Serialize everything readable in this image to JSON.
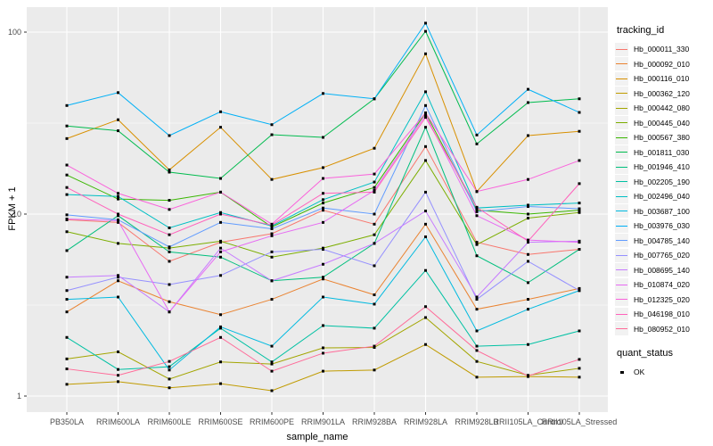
{
  "figure": {
    "background": "#FFFFFF",
    "panel_background": "#EBEBEB",
    "gridline_color": "#FFFFFF",
    "tick_mark_color": "#333333",
    "tick_label_color": "#4D4D4D",
    "axis_title_color": "#000000",
    "point_color": "#000000"
  },
  "legend": {
    "tracking_title": "tracking_id",
    "quant_title": "quant_status",
    "quant_ok_label": "OK"
  },
  "chart_data": {
    "type": "line",
    "title": "",
    "xlabel": "sample_name",
    "ylabel": "FPKM + 1",
    "y_scale": "log10",
    "y_ticks": [
      1,
      10,
      100
    ],
    "y_minor_ticks": [
      3.162,
      31.62
    ],
    "ylim": [
      0.82,
      137
    ],
    "grid": true,
    "legend_position": "right",
    "point_shape": "filled-square",
    "categories": [
      "PB350LA",
      "RRIM600LA",
      "RRIM600LE",
      "RRIM600SE",
      "RRIM600PE",
      "RRIM901LA",
      "RRIM928BA",
      "RRIM928LA",
      "RRIM928LB",
      "RRII105LA_Control",
      "RRII105LA_Stressed"
    ],
    "series": [
      {
        "name": "Hb_000011_330",
        "color": "#F8766D",
        "values": [
          9.3,
          9.0,
          5.5,
          7.0,
          7.8,
          10.5,
          8.8,
          23.5,
          7.0,
          6.0,
          6.4
        ]
      },
      {
        "name": "Hb_000092_010",
        "color": "#EA8331",
        "values": [
          2.9,
          4.3,
          3.3,
          2.8,
          3.4,
          4.4,
          3.6,
          8.8,
          3.0,
          3.4,
          3.9
        ]
      },
      {
        "name": "Hb_000116_010",
        "color": "#D89000",
        "values": [
          26,
          33,
          17.5,
          30,
          15.5,
          18,
          23,
          76,
          13.3,
          27,
          28.5
        ]
      },
      {
        "name": "Hb_000362_120",
        "color": "#C09B00",
        "values": [
          1.16,
          1.2,
          1.11,
          1.17,
          1.07,
          1.37,
          1.39,
          1.92,
          1.27,
          1.28,
          1.27
        ]
      },
      {
        "name": "Hb_000442_080",
        "color": "#A3A500",
        "values": [
          1.6,
          1.75,
          1.24,
          1.54,
          1.5,
          1.84,
          1.85,
          2.7,
          1.55,
          1.3,
          1.42
        ]
      },
      {
        "name": "Hb_000445_040",
        "color": "#7CAE00",
        "values": [
          8.0,
          6.9,
          6.5,
          7.1,
          5.8,
          6.5,
          7.7,
          19.7,
          6.8,
          9.5,
          10.2
        ]
      },
      {
        "name": "Hb_000567_380",
        "color": "#39B600",
        "values": [
          16.4,
          12.1,
          11.9,
          13.2,
          8.5,
          11.5,
          14.0,
          36,
          10.5,
          10.0,
          10.5
        ]
      },
      {
        "name": "Hb_001811_030",
        "color": "#00BB4E",
        "values": [
          30.5,
          28.7,
          17.0,
          15.7,
          27.3,
          26.4,
          43,
          101,
          24.3,
          41,
          43
        ]
      },
      {
        "name": "Hb_001946_410",
        "color": "#00BF7D",
        "values": [
          6.3,
          9.8,
          6.2,
          5.8,
          4.3,
          4.5,
          6.9,
          30,
          5.9,
          4.2,
          6.4
        ]
      },
      {
        "name": "Hb_002205_190",
        "color": "#00C1A3",
        "values": [
          2.1,
          1.4,
          1.45,
          2.36,
          1.54,
          2.44,
          2.36,
          4.9,
          1.88,
          1.92,
          2.28
        ]
      },
      {
        "name": "Hb_002496_040",
        "color": "#00BFC4",
        "values": [
          12.8,
          12.5,
          8.4,
          10.2,
          8.6,
          12.0,
          15.0,
          47,
          10.8,
          11.2,
          11.5
        ]
      },
      {
        "name": "Hb_003687_100",
        "color": "#00BAE0",
        "values": [
          3.4,
          3.5,
          1.39,
          2.4,
          1.88,
          3.5,
          3.2,
          7.5,
          2.28,
          3.0,
          3.8
        ]
      },
      {
        "name": "Hb_003976_030",
        "color": "#00B0F6",
        "values": [
          39.5,
          46.5,
          27,
          36.5,
          31,
          46,
          43,
          112,
          27.2,
          48.5,
          36.2
        ]
      },
      {
        "name": "Hb_004785_140",
        "color": "#619CFF",
        "values": [
          9.9,
          9.3,
          6.6,
          9.0,
          8.3,
          10.8,
          10.0,
          39.5,
          10.3,
          11.0,
          10.7
        ]
      },
      {
        "name": "Hb_007765_020",
        "color": "#9590FF",
        "values": [
          3.8,
          4.5,
          4.1,
          4.6,
          6.2,
          6.4,
          5.2,
          13.2,
          3.4,
          5.5,
          3.8
        ]
      },
      {
        "name": "Hb_008695_140",
        "color": "#C77CFF",
        "values": [
          4.5,
          4.6,
          2.9,
          6.5,
          4.3,
          5.3,
          6.9,
          10.4,
          3.5,
          7.0,
          7.1
        ]
      },
      {
        "name": "Hb_010874_020",
        "color": "#E76BF3",
        "values": [
          9.4,
          9.2,
          2.9,
          6.2,
          7.6,
          9.0,
          13.5,
          35,
          9.8,
          7.2,
          7.0
        ]
      },
      {
        "name": "Hb_012325_020",
        "color": "#FA62DB",
        "values": [
          18.6,
          13.0,
          10.6,
          13.2,
          8.8,
          15.7,
          16.6,
          36,
          13.3,
          15.5,
          19.7
        ]
      },
      {
        "name": "Hb_046198_010",
        "color": "#FF62BC",
        "values": [
          14.0,
          10.0,
          7.7,
          10.0,
          8.7,
          13.0,
          13.2,
          34,
          10.9,
          7.1,
          14.7
        ]
      },
      {
        "name": "Hb_080952_010",
        "color": "#FF6A98",
        "values": [
          1.41,
          1.3,
          1.55,
          2.1,
          1.37,
          1.72,
          1.88,
          3.1,
          1.78,
          1.29,
          1.59
        ]
      }
    ],
    "point_legend": {
      "title": "quant_status",
      "items": [
        {
          "label": "OK"
        }
      ]
    }
  }
}
